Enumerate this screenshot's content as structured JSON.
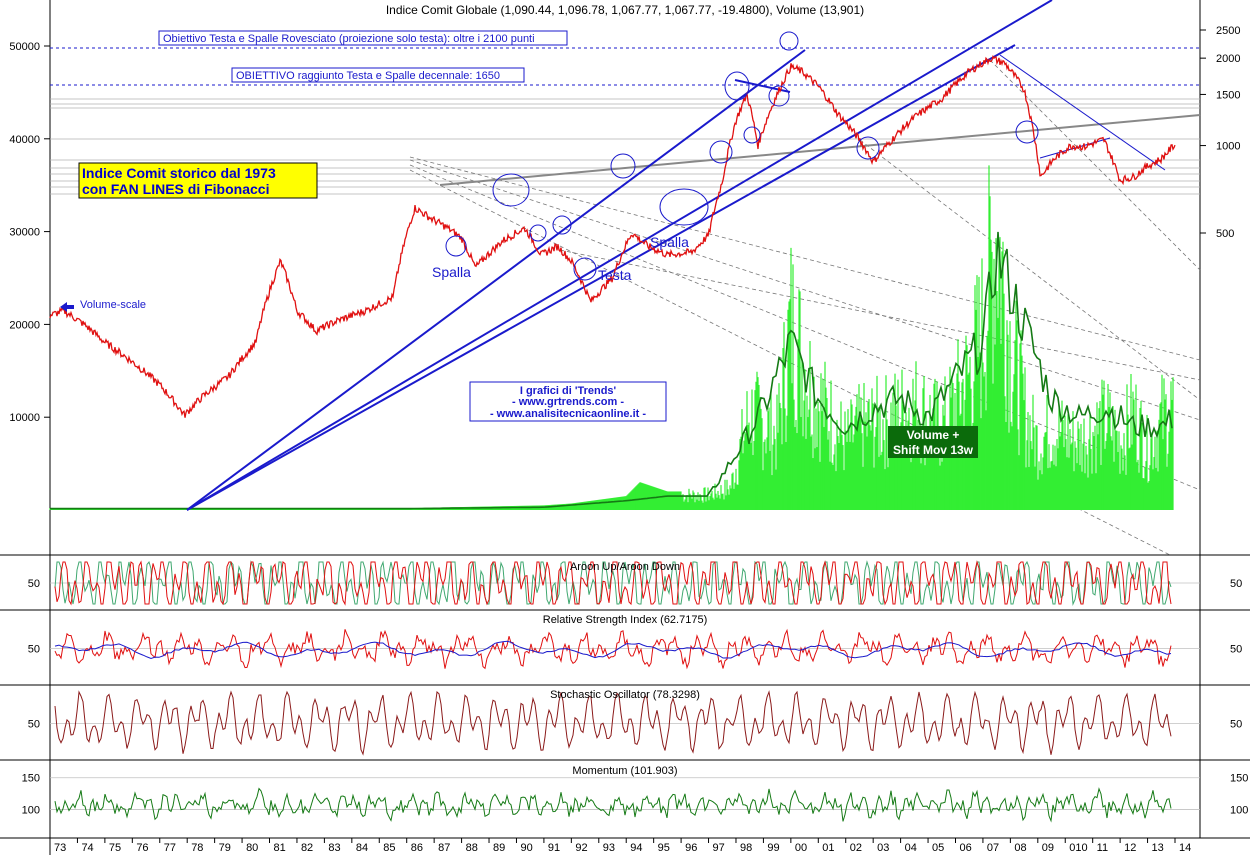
{
  "title": "Indice Comit Globale (1,090.44, 1,096.78, 1,067.77, 1,067.77, -19.4800), Volume (13,901)",
  "annotations": {
    "target_box_1": "Obiettivo Testa e Spalle Rovesciato (proiezione solo testa): oltre i 2100 punti",
    "target_box_2": "OBIETTIVO raggiunto Testa e Spalle decennale: 1650",
    "headline_1": "Indice Comit storico dal 1973",
    "headline_2": "con FAN LINES di Fibonacci",
    "volume_scale": "Volume-scale",
    "spalla_left": "Spalla",
    "testa": "Testa",
    "spalla_right": "Spalla",
    "trends_1": "I grafici di 'Trends'",
    "trends_2": "- www.grtrends.com -",
    "trends_3": "- www.analisitecnicaonline.it -",
    "vol_label_1": "Volume +",
    "vol_label_2": "Shift Mov 13w"
  },
  "colors": {
    "price": "#e01010",
    "volume": "#33ee33",
    "volume_ma": "#157a15",
    "fan_line": "#1a1acc",
    "aroon_up": "#e01010",
    "aroon_down": "#40a870",
    "rsi": "#e01010",
    "rsi_ma": "#1a1acc",
    "stoch": "#8b1a1a",
    "momentum": "#157a15",
    "headline_bg": "#ffff00",
    "vol_label_bg": "#0b6b0b"
  },
  "chart_data": [
    {
      "type": "line",
      "title": "Indice Comit Globale (1,090.44, 1,096.78, 1,067.77, 1,067.77, -19.4800), Volume (13,901)",
      "x_tick_labels": [
        "73",
        "74",
        "75",
        "76",
        "77",
        "78",
        "79",
        "80",
        "81",
        "82",
        "83",
        "84",
        "85",
        "86",
        "87",
        "88",
        "89",
        "90",
        "91",
        "92",
        "93",
        "94",
        "95",
        "96",
        "97",
        "98",
        "99",
        "00",
        "01",
        "02",
        "03",
        "04",
        "05",
        "06",
        "07",
        "08",
        "09",
        "010",
        "11",
        "12",
        "13",
        "14"
      ],
      "y_right_ticks": [
        2500,
        2000,
        1500,
        1000,
        500
      ],
      "y_left_volume_ticks": [
        50000,
        40000,
        30000,
        20000,
        10000
      ],
      "series": [
        {
          "name": "Indice Comit Globale",
          "x": [
            1973.0,
            1973.5,
            1974.3,
            1975.0,
            1976.0,
            1977.0,
            1977.9,
            1978.5,
            1979.5,
            1980.5,
            1981.4,
            1982.0,
            1982.7,
            1983.5,
            1984.5,
            1985.5,
            1986.3,
            1986.9,
            1987.5,
            1988.0,
            1988.5,
            1989.5,
            1990.3,
            1990.9,
            1991.5,
            1992.0,
            1992.7,
            1993.5,
            1994.2,
            1994.8,
            1995.5,
            1996.4,
            1997.0,
            1997.5,
            1998.0,
            1998.4,
            1998.8,
            1999.5,
            2000.0,
            2000.4,
            2001.0,
            2001.7,
            2002.4,
            2003.0,
            2003.5,
            2004.5,
            2005.5,
            2006.5,
            2007.3,
            2007.8,
            2008.5,
            2009.1,
            2009.6,
            2010.2,
            2010.7,
            2011.4,
            2012.0,
            2012.5,
            2013.0,
            2013.5,
            2014.0
          ],
          "y": [
            260,
            270,
            240,
            210,
            180,
            150,
            118,
            135,
            160,
            210,
            400,
            270,
            230,
            250,
            270,
            300,
            610,
            560,
            520,
            480,
            380,
            470,
            520,
            420,
            450,
            400,
            290,
            350,
            500,
            450,
            420,
            430,
            490,
            750,
            1220,
            1500,
            1000,
            1500,
            1870,
            1800,
            1600,
            1290,
            1080,
            880,
            1000,
            1250,
            1450,
            1800,
            2000,
            1920,
            1560,
            780,
            900,
            1000,
            990,
            1050,
            760,
            780,
            850,
            900,
            1010
          ]
        }
      ]
    },
    {
      "type": "area",
      "title": "Volume",
      "x": [
        1973.0,
        1986.0,
        1991.0,
        1992.0,
        1994.0,
        1994.5,
        1995.5,
        1997.0,
        1997.8,
        1998.5,
        1999.5,
        2000.0,
        2000.8,
        2001.5,
        2002.0,
        2002.5,
        2003.5,
        2004.5,
        2005.5,
        2006.5,
        2007.0,
        2007.5,
        2008.0,
        2008.6,
        2009.0,
        2009.5,
        2010.5,
        2011.5,
        2012.0,
        2012.5,
        2013.0,
        2013.5,
        2014.0
      ],
      "values": [
        200,
        200,
        500,
        700,
        1500,
        3000,
        2000,
        2000,
        3000,
        13000,
        10000,
        25000,
        16000,
        12000,
        9000,
        11000,
        12000,
        14000,
        11000,
        18000,
        24000,
        38000,
        22000,
        12000,
        9000,
        11000,
        9000,
        12000,
        9000,
        13000,
        8000,
        12000,
        14000
      ],
      "series": [
        {
          "name": "Shift Mov 13w",
          "x": [
            1973.0,
            1986.0,
            1991.0,
            1994.0,
            1995.5,
            1997.0,
            1998.0,
            1999.0,
            2000.0,
            2001.0,
            2002.0,
            2003.0,
            2004.0,
            2005.0,
            2006.0,
            2007.0,
            2007.5,
            2008.5,
            2009.5,
            2010.5,
            2011.5,
            2012.5,
            2013.5,
            2014.0
          ],
          "values": [
            150,
            150,
            300,
            1000,
            1500,
            1500,
            6000,
            11000,
            18000,
            12000,
            9000,
            11000,
            12000,
            10000,
            14000,
            18000,
            28000,
            20000,
            12000,
            10000,
            11000,
            9000,
            9000,
            10000
          ]
        }
      ]
    },
    {
      "type": "line",
      "title": "Aroon Up/Aroon Down",
      "ylim": [
        0,
        100
      ],
      "y_ticks": [
        50
      ]
    },
    {
      "type": "line",
      "title": "Relative Strength Index (62.7175)",
      "ylim": [
        20,
        80
      ],
      "y_ticks": [
        50
      ],
      "last_value": 62.7175
    },
    {
      "type": "line",
      "title": "Stochastic Oscillator (78.3298)",
      "ylim": [
        0,
        100
      ],
      "y_ticks": [
        50
      ],
      "last_value": 78.3298
    },
    {
      "type": "line",
      "title": "Momentum (101.903)",
      "ylim": [
        60,
        170
      ],
      "y_ticks": [
        150,
        100
      ],
      "last_value": 101.903
    }
  ]
}
